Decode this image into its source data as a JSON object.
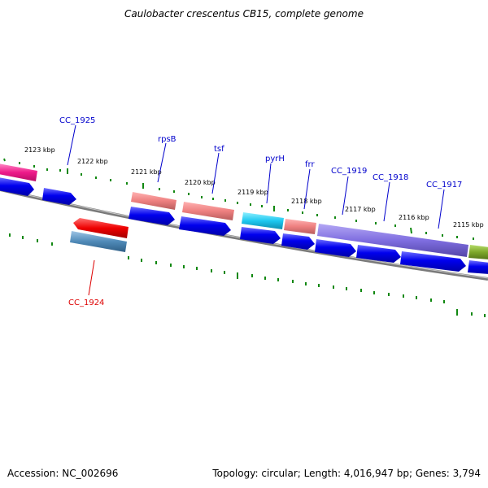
{
  "title": "Caulobacter crescentus CB15, complete genome",
  "footer": {
    "accession": "Accession: NC_002696",
    "summary": "Topology: circular; Length: 4,016,947 bp; Genes: 3,794"
  },
  "colors": {
    "backbone": "#7a7a7a",
    "tick": "#118811",
    "cds": "#0000ee",
    "gene_label": "#0000cc",
    "gene_label_reverse": "#dd0000"
  },
  "kbp_labels": [
    "2123 kbp",
    "2122 kbp",
    "2121 kbp",
    "2120 kbp",
    "2119 kbp",
    "2118 kbp",
    "2117 kbp",
    "2116 kbp",
    "2115 kbp"
  ],
  "gene_labels_forward": [
    "CC_1925",
    "rpsB",
    "tsf",
    "pyrH",
    "frr",
    "CC_1919",
    "CC_1918",
    "CC_1917"
  ],
  "gene_labels_reverse": [
    "CC_1924"
  ]
}
